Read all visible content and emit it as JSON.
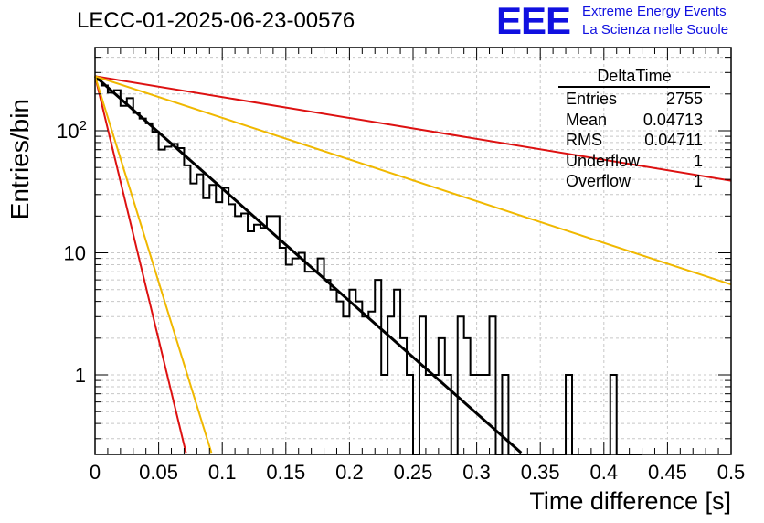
{
  "header": {
    "title": "LECC-01-2025-06-23-00576",
    "logo_text": "EEE",
    "logo_line1": "Extreme Energy Events",
    "logo_line2": "La Scienza nelle Scuole"
  },
  "stats_box": {
    "name": "DeltaTime",
    "rows": [
      {
        "label": "Entries",
        "value": "2755"
      },
      {
        "label": "Mean",
        "value": "0.04713"
      },
      {
        "label": "RMS",
        "value": "0.04711"
      },
      {
        "label": "Underflow",
        "value": "1"
      },
      {
        "label": "Overflow",
        "value": "1"
      }
    ]
  },
  "chart_data": {
    "type": "line",
    "xlabel": "Time difference [s]",
    "ylabel": "Entries/bin",
    "xlim": [
      0,
      0.5
    ],
    "ylim": [
      0.23,
      500
    ],
    "yscale": "log",
    "grid": true,
    "x_ticks": [
      "0",
      "0.05",
      "0.1",
      "0.15",
      "0.2",
      "0.25",
      "0.3",
      "0.35",
      "0.4",
      "0.45",
      "0.5"
    ],
    "y_ticks": [
      "1",
      "10",
      "10²"
    ],
    "histogram": {
      "bin_width": 0.005,
      "color": "#000000",
      "values": [
        260,
        235,
        205,
        215,
        160,
        185,
        140,
        126,
        115,
        98,
        70,
        74,
        78,
        72,
        52,
        37,
        44,
        28,
        36,
        26,
        34,
        25,
        20,
        21,
        15,
        17,
        16,
        20,
        20,
        11,
        8,
        9,
        10,
        7,
        7,
        9,
        6,
        5,
        4,
        3,
        5,
        4,
        3,
        3.3,
        6,
        1,
        3,
        5,
        2,
        1,
        0.2,
        3,
        1,
        1,
        2,
        1,
        0.2,
        3,
        2,
        1,
        1,
        1,
        3,
        0.2,
        1,
        0.2,
        0.2,
        0.2,
        0.2,
        0.2,
        0.2,
        0.2,
        0.2,
        0.2,
        1,
        0.2,
        0.2,
        0.2,
        0.2,
        0.2,
        0.2,
        1,
        0.2,
        0.2,
        0.2,
        0.2
      ]
    },
    "series": [
      {
        "type": "exponential",
        "color": "#000000",
        "values": [
          280,
          0.23
        ],
        "x": [
          0,
          0.335
        ]
      },
      {
        "type": "exponential",
        "color": "#dd1111",
        "values": [
          280,
          0.23
        ],
        "x": [
          0,
          0.0715
        ]
      },
      {
        "type": "exponential",
        "color": "#f0b800",
        "values": [
          280,
          0.23
        ],
        "x": [
          0,
          0.0915
        ]
      },
      {
        "type": "exponential",
        "color": "#dd1111",
        "values": [
          280,
          39
        ],
        "x": [
          0,
          0.5
        ]
      },
      {
        "type": "exponential",
        "color": "#f0b800",
        "values": [
          280,
          5.5
        ],
        "x": [
          0,
          0.5
        ]
      }
    ]
  }
}
